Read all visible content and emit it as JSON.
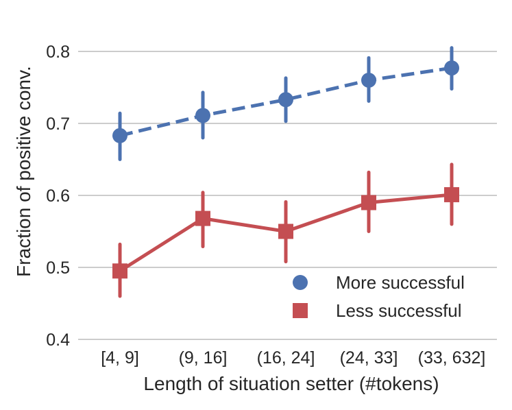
{
  "chart_data": {
    "type": "line",
    "title": "",
    "xlabel": "Length of situation setter (#tokens)",
    "ylabel": "Fraction of positive conv.",
    "categories": [
      "[4, 9]",
      "(9, 16]",
      "(16, 24]",
      "(24, 33]",
      "(33, 632]"
    ],
    "ylim": [
      0.4,
      0.8
    ],
    "yticks": [
      0.4,
      0.5,
      0.6,
      0.7,
      0.8
    ],
    "ytick_labels": [
      "0.4",
      "0.5",
      "0.6",
      "0.7",
      "0.8"
    ],
    "grid": "horizontal",
    "legend_position": "lower-right",
    "series": [
      {
        "name": "More successful",
        "color": "#4c72b0",
        "marker": "circle",
        "linestyle": "dashed",
        "values": [
          0.683,
          0.711,
          0.733,
          0.76,
          0.777
        ],
        "ci_low": [
          0.65,
          0.68,
          0.703,
          0.731,
          0.748
        ],
        "ci_high": [
          0.714,
          0.743,
          0.763,
          0.791,
          0.805
        ]
      },
      {
        "name": "Less successful",
        "color": "#c44e52",
        "marker": "square",
        "linestyle": "solid",
        "values": [
          0.495,
          0.568,
          0.55,
          0.59,
          0.601
        ],
        "ci_low": [
          0.46,
          0.529,
          0.508,
          0.55,
          0.56
        ],
        "ci_high": [
          0.532,
          0.604,
          0.591,
          0.632,
          0.643
        ]
      }
    ]
  }
}
